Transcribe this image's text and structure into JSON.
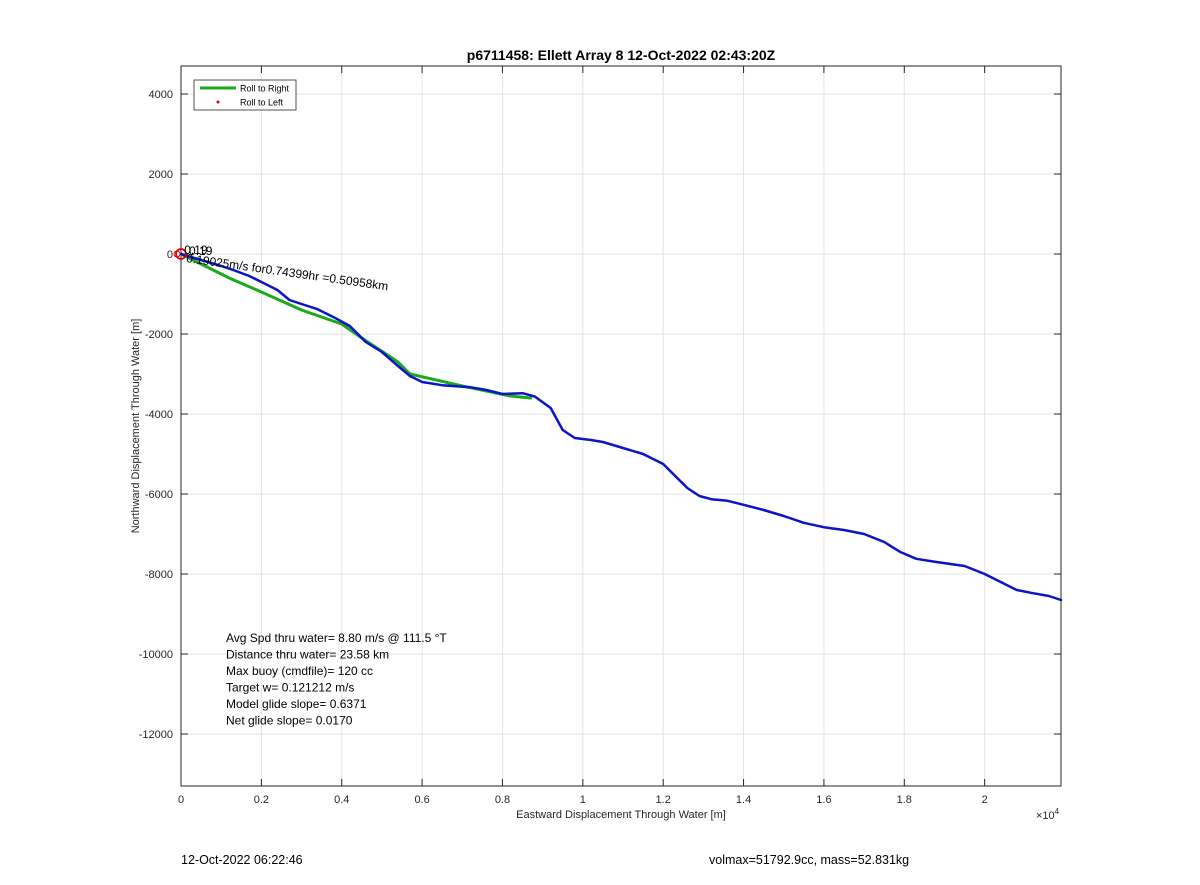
{
  "chart_data": {
    "type": "line",
    "title": "p6711458: Ellett Array 8 12-Oct-2022 02:43:20Z",
    "xlabel": "Eastward Displacement Through Water [m]",
    "ylabel": "Northward Displacement Through Water [m]",
    "x_exponent_label": "×10",
    "x_exponent_power": "4",
    "xlim": [
      0,
      21900
    ],
    "ylim": [
      -13300,
      4700
    ],
    "x_ticks": [
      0,
      2000,
      4000,
      6000,
      8000,
      10000,
      12000,
      14000,
      16000,
      18000,
      20000
    ],
    "x_tick_labels": [
      "0",
      "0.2",
      "0.4",
      "0.6",
      "0.8",
      "1",
      "1.2",
      "1.4",
      "1.6",
      "1.8",
      "2"
    ],
    "y_ticks": [
      4000,
      2000,
      0,
      -2000,
      -4000,
      -6000,
      -8000,
      -10000,
      -12000
    ],
    "y_tick_labels": [
      "4000",
      "2000",
      "0",
      "-2000",
      "-4000",
      "-6000",
      "-8000",
      "-10000",
      "-12000"
    ],
    "grid": true,
    "legend_position": "top-left",
    "legend": [
      {
        "label": "Roll to Right",
        "color": "#1aaa1a",
        "marker": "line"
      },
      {
        "label": "Roll to Left",
        "color": "#e00000",
        "marker": "dot"
      }
    ],
    "series": [
      {
        "name": "Roll to Right",
        "color": "#1aaa1a",
        "points": [
          [
            0,
            0
          ],
          [
            1200,
            -600
          ],
          [
            2000,
            -950
          ],
          [
            3000,
            -1400
          ],
          [
            4000,
            -1750
          ],
          [
            4500,
            -2100
          ],
          [
            5400,
            -2700
          ],
          [
            5700,
            -3000
          ],
          [
            7000,
            -3300
          ],
          [
            8200,
            -3550
          ],
          [
            8700,
            -3600
          ]
        ]
      },
      {
        "name": "track",
        "color": "#0a14c8",
        "points": [
          [
            0,
            0
          ],
          [
            500,
            -150
          ],
          [
            1000,
            -300
          ],
          [
            1300,
            -400
          ],
          [
            1700,
            -550
          ],
          [
            2000,
            -700
          ],
          [
            2400,
            -900
          ],
          [
            2700,
            -1150
          ],
          [
            3000,
            -1250
          ],
          [
            3400,
            -1380
          ],
          [
            3800,
            -1580
          ],
          [
            4200,
            -1800
          ],
          [
            4600,
            -2200
          ],
          [
            5000,
            -2450
          ],
          [
            5400,
            -2800
          ],
          [
            5700,
            -3050
          ],
          [
            6000,
            -3200
          ],
          [
            6500,
            -3280
          ],
          [
            7200,
            -3330
          ],
          [
            7600,
            -3400
          ],
          [
            8000,
            -3500
          ],
          [
            8500,
            -3480
          ],
          [
            8800,
            -3560
          ],
          [
            9200,
            -3850
          ],
          [
            9500,
            -4400
          ],
          [
            9800,
            -4600
          ],
          [
            10200,
            -4650
          ],
          [
            10500,
            -4700
          ],
          [
            11000,
            -4850
          ],
          [
            11500,
            -5000
          ],
          [
            12000,
            -5250
          ],
          [
            12300,
            -5550
          ],
          [
            12600,
            -5850
          ],
          [
            12900,
            -6050
          ],
          [
            13200,
            -6130
          ],
          [
            13600,
            -6170
          ],
          [
            14000,
            -6270
          ],
          [
            14500,
            -6400
          ],
          [
            15000,
            -6550
          ],
          [
            15500,
            -6720
          ],
          [
            16000,
            -6830
          ],
          [
            16500,
            -6900
          ],
          [
            17000,
            -7000
          ],
          [
            17500,
            -7200
          ],
          [
            17900,
            -7450
          ],
          [
            18300,
            -7620
          ],
          [
            18800,
            -7700
          ],
          [
            19500,
            -7800
          ],
          [
            20000,
            -8000
          ],
          [
            20400,
            -8200
          ],
          [
            20800,
            -8400
          ],
          [
            21200,
            -8480
          ],
          [
            21600,
            -8550
          ],
          [
            21900,
            -8650
          ]
        ]
      }
    ],
    "start_marker": {
      "x": 0,
      "y": 0,
      "color": "#e00000"
    },
    "annotations": [
      {
        "text": "0.19",
        "x": 80,
        "y": 0,
        "rotation": 0
      },
      {
        "text": "0.19",
        "x": 200,
        "y": -30,
        "rotation": 0
      },
      {
        "text": "0.19025m/s for0.74399hr =0.50958km",
        "x": 120,
        "y": -200,
        "rotation": 8
      }
    ],
    "stats": [
      "Avg Spd thru water=  8.80 m/s @ 111.5 °T",
      "Distance thru water= 23.58 km",
      "Max buoy (cmdfile)= 120 cc",
      "Target w= 0.121212 m/s",
      "Model glide slope= 0.6371",
      "Net glide slope= 0.0170"
    ]
  },
  "footer": {
    "timestamp": "12-Oct-2022 06:22:46",
    "volmax_mass": "volmax=51792.9cc, mass=52.831kg"
  }
}
